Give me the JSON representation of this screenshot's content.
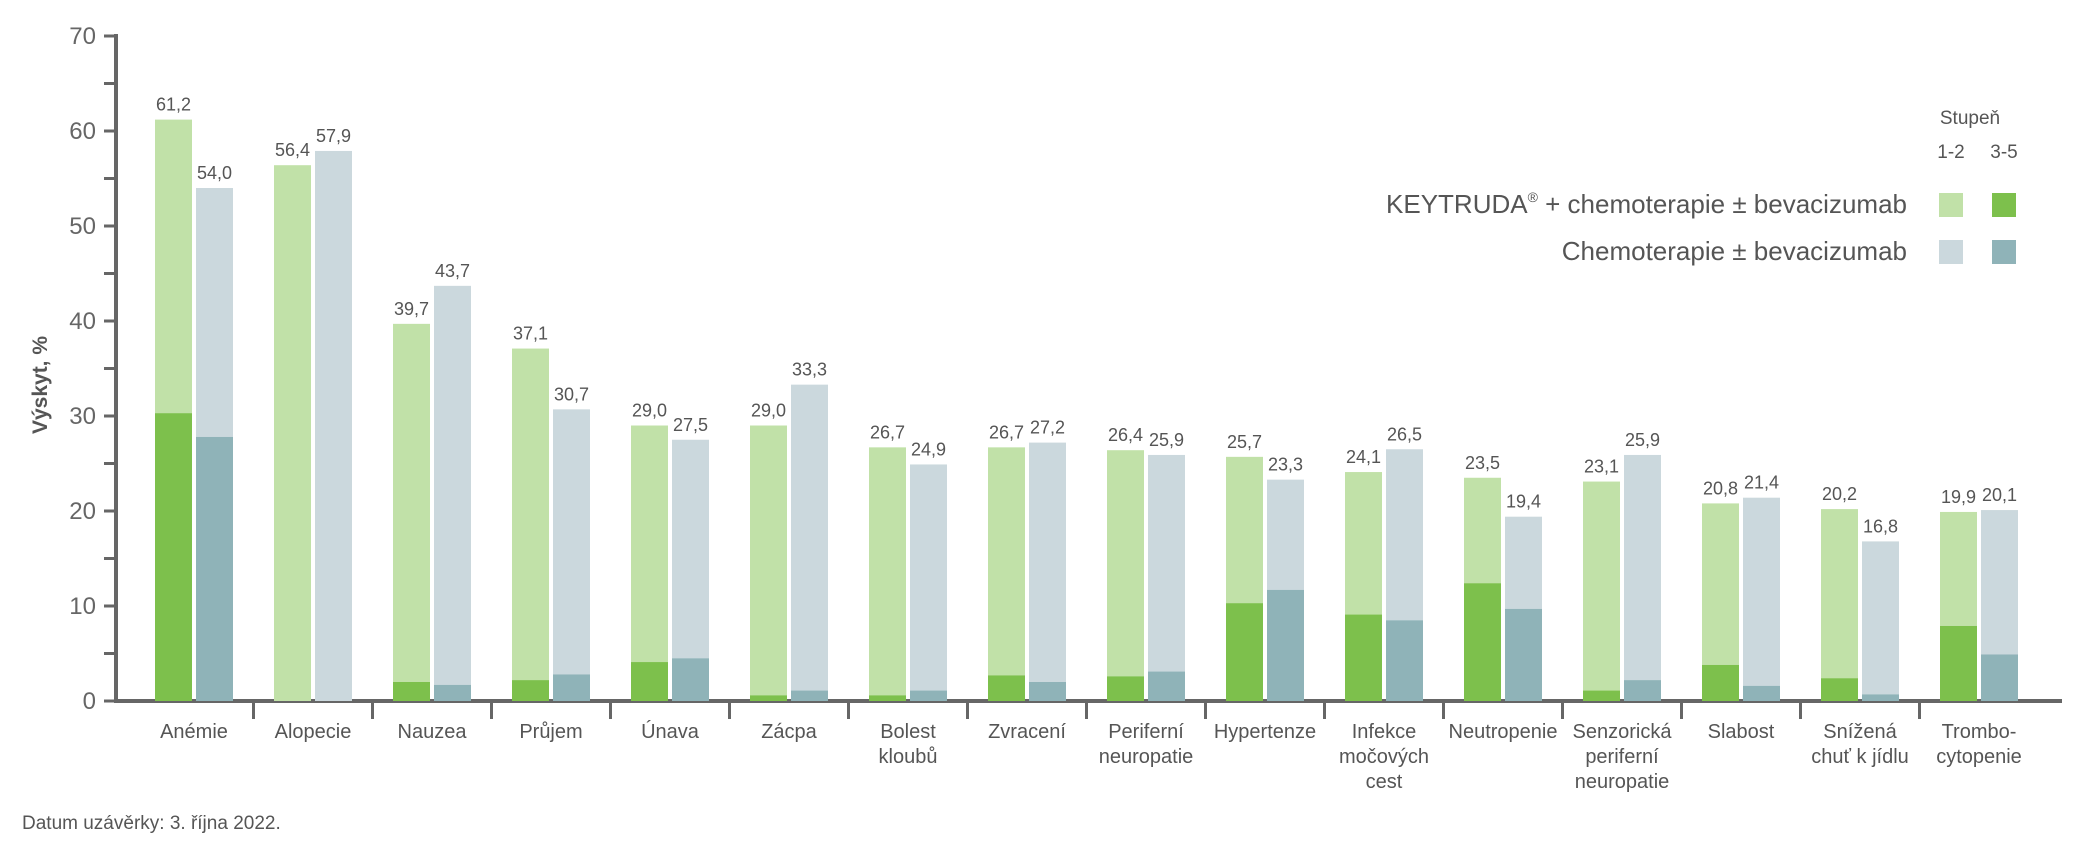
{
  "chart_data": {
    "type": "bar",
    "stacked": true,
    "ylabel": "Výskyt, %",
    "ylim": [
      0,
      70
    ],
    "yticks": [
      0,
      10,
      20,
      30,
      40,
      50,
      60,
      70
    ],
    "grid": false,
    "legend_position": "top-right",
    "legend_title": "Stupeň",
    "legend_grade_labels": [
      "1-2",
      "3-5"
    ],
    "categories": [
      [
        "Anémie"
      ],
      [
        "Alopecie"
      ],
      [
        "Nauzea"
      ],
      [
        "Průjem"
      ],
      [
        "Únava"
      ],
      [
        "Zácpa"
      ],
      [
        "Bolest",
        "kloubů"
      ],
      [
        "Zvracení"
      ],
      [
        "Periferní",
        "neuropatie"
      ],
      [
        "Hypertenze"
      ],
      [
        "Infekce",
        "močových",
        "cest"
      ],
      [
        "Neutropenie"
      ],
      [
        "Senzorická",
        "periferní",
        "neuropatie"
      ],
      [
        "Slabost"
      ],
      [
        "Snížená",
        "chuť k jídlu"
      ],
      [
        "Trombo-",
        "cytopenie"
      ]
    ],
    "series": [
      {
        "name": "KEYTRUDA® + chemoterapie ±  bevacizumab",
        "total_labels": [
          "61,2",
          "56,4",
          "39,7",
          "37,1",
          "29,0",
          "29,0",
          "26,7",
          "26,7",
          "26,4",
          "25,7",
          "24,1",
          "23,5",
          "23,1",
          "20,8",
          "20,2",
          "19,9"
        ],
        "total": [
          61.2,
          56.4,
          39.7,
          37.1,
          29.0,
          29.0,
          26.7,
          26.7,
          26.4,
          25.7,
          24.1,
          23.5,
          23.1,
          20.8,
          20.2,
          19.9
        ],
        "grade_3_5": [
          30.3,
          0,
          2.0,
          2.2,
          4.1,
          0.6,
          0.6,
          2.7,
          2.6,
          10.3,
          9.1,
          12.4,
          1.1,
          3.8,
          2.4,
          7.9
        ],
        "color_1_2": "#c1e1a8",
        "color_3_5": "#7dc04c"
      },
      {
        "name": "Chemoterapie ±  bevacizumab",
        "total_labels": [
          "54,0",
          "57,9",
          "43,7",
          "30,7",
          "27,5",
          "33,3",
          "24,9",
          "27,2",
          "25,9",
          "23,3",
          "26,5",
          "19,4",
          "25,9",
          "21,4",
          "16,8",
          "20,1"
        ],
        "total": [
          54.0,
          57.9,
          43.7,
          30.7,
          27.5,
          33.3,
          24.9,
          27.2,
          25.9,
          23.3,
          26.5,
          19.4,
          25.9,
          21.4,
          16.8,
          20.1
        ],
        "grade_3_5": [
          27.8,
          0,
          1.7,
          2.8,
          4.5,
          1.1,
          1.1,
          2.0,
          3.1,
          11.7,
          8.5,
          9.7,
          2.2,
          1.6,
          0.7,
          4.9
        ],
        "color_1_2": "#cbd8dd",
        "color_3_5": "#8fb3b8"
      }
    ]
  },
  "footer": "Datum uzávěrky: 3. října 2022."
}
